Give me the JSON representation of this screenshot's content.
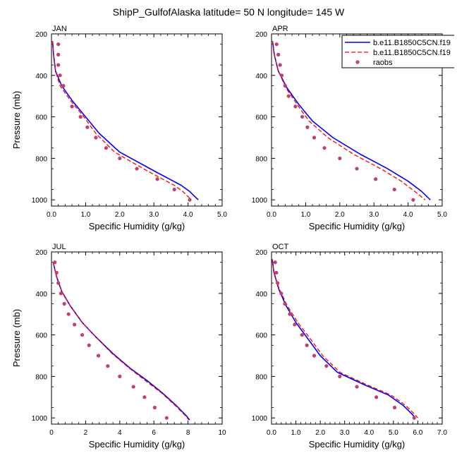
{
  "figure_title": "ShipP_GulfofAlaska  latitude= 50 N longitude= 145 W",
  "legend": {
    "entries": [
      {
        "label": "b.e11.B1850C5CN.f19",
        "color": "#0000ff",
        "style": "solid"
      },
      {
        "label": "b.e11.B1850C5CN.f19",
        "color": "#ff0000",
        "style": "dashed"
      },
      {
        "label": "raobs",
        "color": "#c0406a",
        "style": "marker"
      }
    ]
  },
  "chart_data": [
    {
      "type": "line",
      "panel_title": "JAN",
      "xlabel": "Specific Humidity (g/kg)",
      "ylabel": "Pressure (mb)",
      "xlim": [
        0,
        5
      ],
      "ylim": [
        1000,
        200
      ],
      "y_reversed": true,
      "xticks": [
        "0.0",
        "1.0",
        "2.0",
        "3.0",
        "4.0",
        "5.0"
      ],
      "xtick_values": [
        0,
        1,
        2,
        3,
        4,
        5
      ],
      "yticks": [
        "200",
        "400",
        "600",
        "800",
        "1000"
      ],
      "ytick_values": [
        200,
        400,
        600,
        800,
        1000
      ],
      "series": [
        {
          "name": "b.e11.B1850C5CN.f19 (solid)",
          "color": "#0000ff",
          "points": [
            [
              0.03,
              235
            ],
            [
              0.06,
              300
            ],
            [
              0.12,
              380
            ],
            [
              0.3,
              450
            ],
            [
              0.6,
              520
            ],
            [
              1.0,
              600
            ],
            [
              1.4,
              680
            ],
            [
              2.0,
              770
            ],
            [
              3.0,
              860
            ],
            [
              3.8,
              930
            ],
            [
              4.05,
              960
            ],
            [
              4.3,
              1000
            ]
          ]
        },
        {
          "name": "b.e11.B1850C5CN.f19 (dashed)",
          "color": "#ff0000",
          "points": [
            [
              0.03,
              235
            ],
            [
              0.06,
              300
            ],
            [
              0.12,
              380
            ],
            [
              0.25,
              450
            ],
            [
              0.55,
              520
            ],
            [
              0.95,
              600
            ],
            [
              1.3,
              680
            ],
            [
              1.85,
              770
            ],
            [
              2.8,
              860
            ],
            [
              3.6,
              930
            ],
            [
              3.85,
              960
            ],
            [
              4.1,
              1000
            ]
          ]
        },
        {
          "name": "raobs",
          "color": "#c0406a",
          "points": [
            [
              0.2,
              250
            ],
            [
              0.2,
              300
            ],
            [
              0.2,
              350
            ],
            [
              0.25,
              400
            ],
            [
              0.35,
              450
            ],
            [
              0.6,
              550
            ],
            [
              0.85,
              600
            ],
            [
              1.05,
              650
            ],
            [
              1.3,
              700
            ],
            [
              1.6,
              750
            ],
            [
              2.0,
              800
            ],
            [
              2.5,
              850
            ],
            [
              3.1,
              900
            ],
            [
              3.6,
              950
            ],
            [
              4.05,
              1000
            ]
          ]
        }
      ]
    },
    {
      "type": "line",
      "panel_title": "APR",
      "xlabel": "Specific Humidity (g/kg)",
      "ylabel": "",
      "xlim": [
        0,
        5
      ],
      "ylim": [
        1000,
        200
      ],
      "y_reversed": true,
      "xticks": [
        "0.0",
        "1.0",
        "2.0",
        "3.0",
        "4.0",
        "5.0"
      ],
      "xtick_values": [
        0,
        1,
        2,
        3,
        4,
        5
      ],
      "yticks": [
        "200",
        "400",
        "600",
        "800",
        "1000"
      ],
      "ytick_values": [
        200,
        400,
        600,
        800,
        1000
      ],
      "series": [
        {
          "name": "b.e11.B1850C5CN.f19 (solid)",
          "color": "#0000ff",
          "points": [
            [
              0.03,
              235
            ],
            [
              0.08,
              300
            ],
            [
              0.2,
              380
            ],
            [
              0.45,
              460
            ],
            [
              0.8,
              540
            ],
            [
              1.2,
              620
            ],
            [
              1.8,
              700
            ],
            [
              2.6,
              780
            ],
            [
              3.4,
              850
            ],
            [
              4.0,
              910
            ],
            [
              4.4,
              960
            ],
            [
              4.65,
              1000
            ]
          ]
        },
        {
          "name": "b.e11.B1850C5CN.f19 (dashed)",
          "color": "#ff0000",
          "points": [
            [
              0.03,
              235
            ],
            [
              0.08,
              300
            ],
            [
              0.2,
              380
            ],
            [
              0.42,
              460
            ],
            [
              0.75,
              540
            ],
            [
              1.1,
              620
            ],
            [
              1.65,
              700
            ],
            [
              2.4,
              780
            ],
            [
              3.2,
              850
            ],
            [
              3.8,
              910
            ],
            [
              4.2,
              960
            ],
            [
              4.5,
              1000
            ]
          ]
        },
        {
          "name": "raobs",
          "color": "#c0406a",
          "points": [
            [
              0.15,
              250
            ],
            [
              0.2,
              300
            ],
            [
              0.25,
              350
            ],
            [
              0.3,
              400
            ],
            [
              0.4,
              450
            ],
            [
              0.5,
              500
            ],
            [
              0.7,
              550
            ],
            [
              0.9,
              600
            ],
            [
              1.05,
              650
            ],
            [
              1.25,
              700
            ],
            [
              1.55,
              750
            ],
            [
              2.0,
              800
            ],
            [
              2.5,
              850
            ],
            [
              3.05,
              900
            ],
            [
              3.6,
              950
            ],
            [
              4.15,
              1000
            ]
          ]
        }
      ]
    },
    {
      "type": "line",
      "panel_title": "JUL",
      "xlabel": "Specific Humidity (g/kg)",
      "ylabel": "Pressure (mb)",
      "xlim": [
        0,
        10
      ],
      "ylim": [
        1000,
        200
      ],
      "y_reversed": true,
      "xticks": [
        "0",
        "2",
        "4",
        "6",
        "8",
        "10"
      ],
      "xtick_values": [
        0,
        2,
        4,
        6,
        8,
        10
      ],
      "yticks": [
        "200",
        "400",
        "600",
        "800",
        "1000"
      ],
      "ytick_values": [
        200,
        400,
        600,
        800,
        1000
      ],
      "series": [
        {
          "name": "b.e11.B1850C5CN.f19 (solid)",
          "color": "#0000ff",
          "points": [
            [
              0.1,
              250
            ],
            [
              0.3,
              320
            ],
            [
              0.6,
              390
            ],
            [
              1.1,
              460
            ],
            [
              1.8,
              540
            ],
            [
              2.6,
              610
            ],
            [
              3.6,
              690
            ],
            [
              4.6,
              760
            ],
            [
              5.6,
              820
            ],
            [
              6.5,
              880
            ],
            [
              7.3,
              940
            ],
            [
              7.9,
              990
            ],
            [
              8.1,
              1010
            ]
          ]
        },
        {
          "name": "b.e11.B1850C5CN.f19 (dashed)",
          "color": "#ff0000",
          "points": [
            [
              0.1,
              250
            ],
            [
              0.3,
              320
            ],
            [
              0.6,
              390
            ],
            [
              1.1,
              460
            ],
            [
              1.8,
              540
            ],
            [
              2.6,
              610
            ],
            [
              3.55,
              690
            ],
            [
              4.55,
              760
            ],
            [
              5.5,
              820
            ],
            [
              6.45,
              880
            ],
            [
              7.25,
              940
            ],
            [
              7.85,
              990
            ],
            [
              8.05,
              1010
            ]
          ]
        },
        {
          "name": "raobs",
          "color": "#c0406a",
          "points": [
            [
              0.2,
              250
            ],
            [
              0.3,
              300
            ],
            [
              0.4,
              350
            ],
            [
              0.55,
              400
            ],
            [
              0.75,
              450
            ],
            [
              1.0,
              500
            ],
            [
              1.35,
              550
            ],
            [
              1.8,
              600
            ],
            [
              2.2,
              650
            ],
            [
              2.75,
              700
            ],
            [
              3.3,
              750
            ],
            [
              4.0,
              800
            ],
            [
              4.8,
              850
            ],
            [
              5.45,
              900
            ],
            [
              6.05,
              950
            ],
            [
              6.75,
              1000
            ]
          ]
        }
      ]
    },
    {
      "type": "line",
      "panel_title": "OCT",
      "xlabel": "Specific Humidity (g/kg)",
      "ylabel": "",
      "xlim": [
        0,
        7
      ],
      "ylim": [
        1000,
        200
      ],
      "y_reversed": true,
      "xticks": [
        "0.0",
        "1.0",
        "2.0",
        "3.0",
        "4.0",
        "5.0",
        "6.0",
        "7.0"
      ],
      "xtick_values": [
        0,
        1,
        2,
        3,
        4,
        5,
        6,
        7
      ],
      "yticks": [
        "200",
        "400",
        "600",
        "800",
        "1000"
      ],
      "ytick_values": [
        200,
        400,
        600,
        800,
        1000
      ],
      "series": [
        {
          "name": "b.e11.B1850C5CN.f19 (solid)",
          "color": "#0000ff",
          "points": [
            [
              0.03,
              235
            ],
            [
              0.1,
              300
            ],
            [
              0.3,
              380
            ],
            [
              0.6,
              460
            ],
            [
              1.0,
              540
            ],
            [
              1.5,
              620
            ],
            [
              2.0,
              700
            ],
            [
              2.7,
              780
            ],
            [
              3.8,
              840
            ],
            [
              4.8,
              890
            ],
            [
              5.4,
              940
            ],
            [
              5.75,
              980
            ],
            [
              5.9,
              1000
            ]
          ]
        },
        {
          "name": "b.e11.B1850C5CN.f19 (dashed)",
          "color": "#ff0000",
          "points": [
            [
              0.03,
              235
            ],
            [
              0.1,
              300
            ],
            [
              0.32,
              380
            ],
            [
              0.65,
              460
            ],
            [
              1.08,
              540
            ],
            [
              1.6,
              620
            ],
            [
              2.1,
              700
            ],
            [
              2.8,
              780
            ],
            [
              3.9,
              840
            ],
            [
              4.9,
              890
            ],
            [
              5.5,
              940
            ],
            [
              5.85,
              980
            ],
            [
              6.0,
              1000
            ]
          ]
        },
        {
          "name": "raobs",
          "color": "#c0406a",
          "points": [
            [
              0.15,
              250
            ],
            [
              0.2,
              300
            ],
            [
              0.25,
              350
            ],
            [
              0.4,
              400
            ],
            [
              0.55,
              450
            ],
            [
              0.75,
              500
            ],
            [
              0.95,
              550
            ],
            [
              1.25,
              600
            ],
            [
              1.45,
              650
            ],
            [
              1.75,
              700
            ],
            [
              2.25,
              750
            ],
            [
              2.8,
              800
            ],
            [
              3.5,
              850
            ],
            [
              4.3,
              900
            ],
            [
              5.05,
              950
            ],
            [
              5.85,
              1000
            ]
          ]
        }
      ]
    }
  ]
}
